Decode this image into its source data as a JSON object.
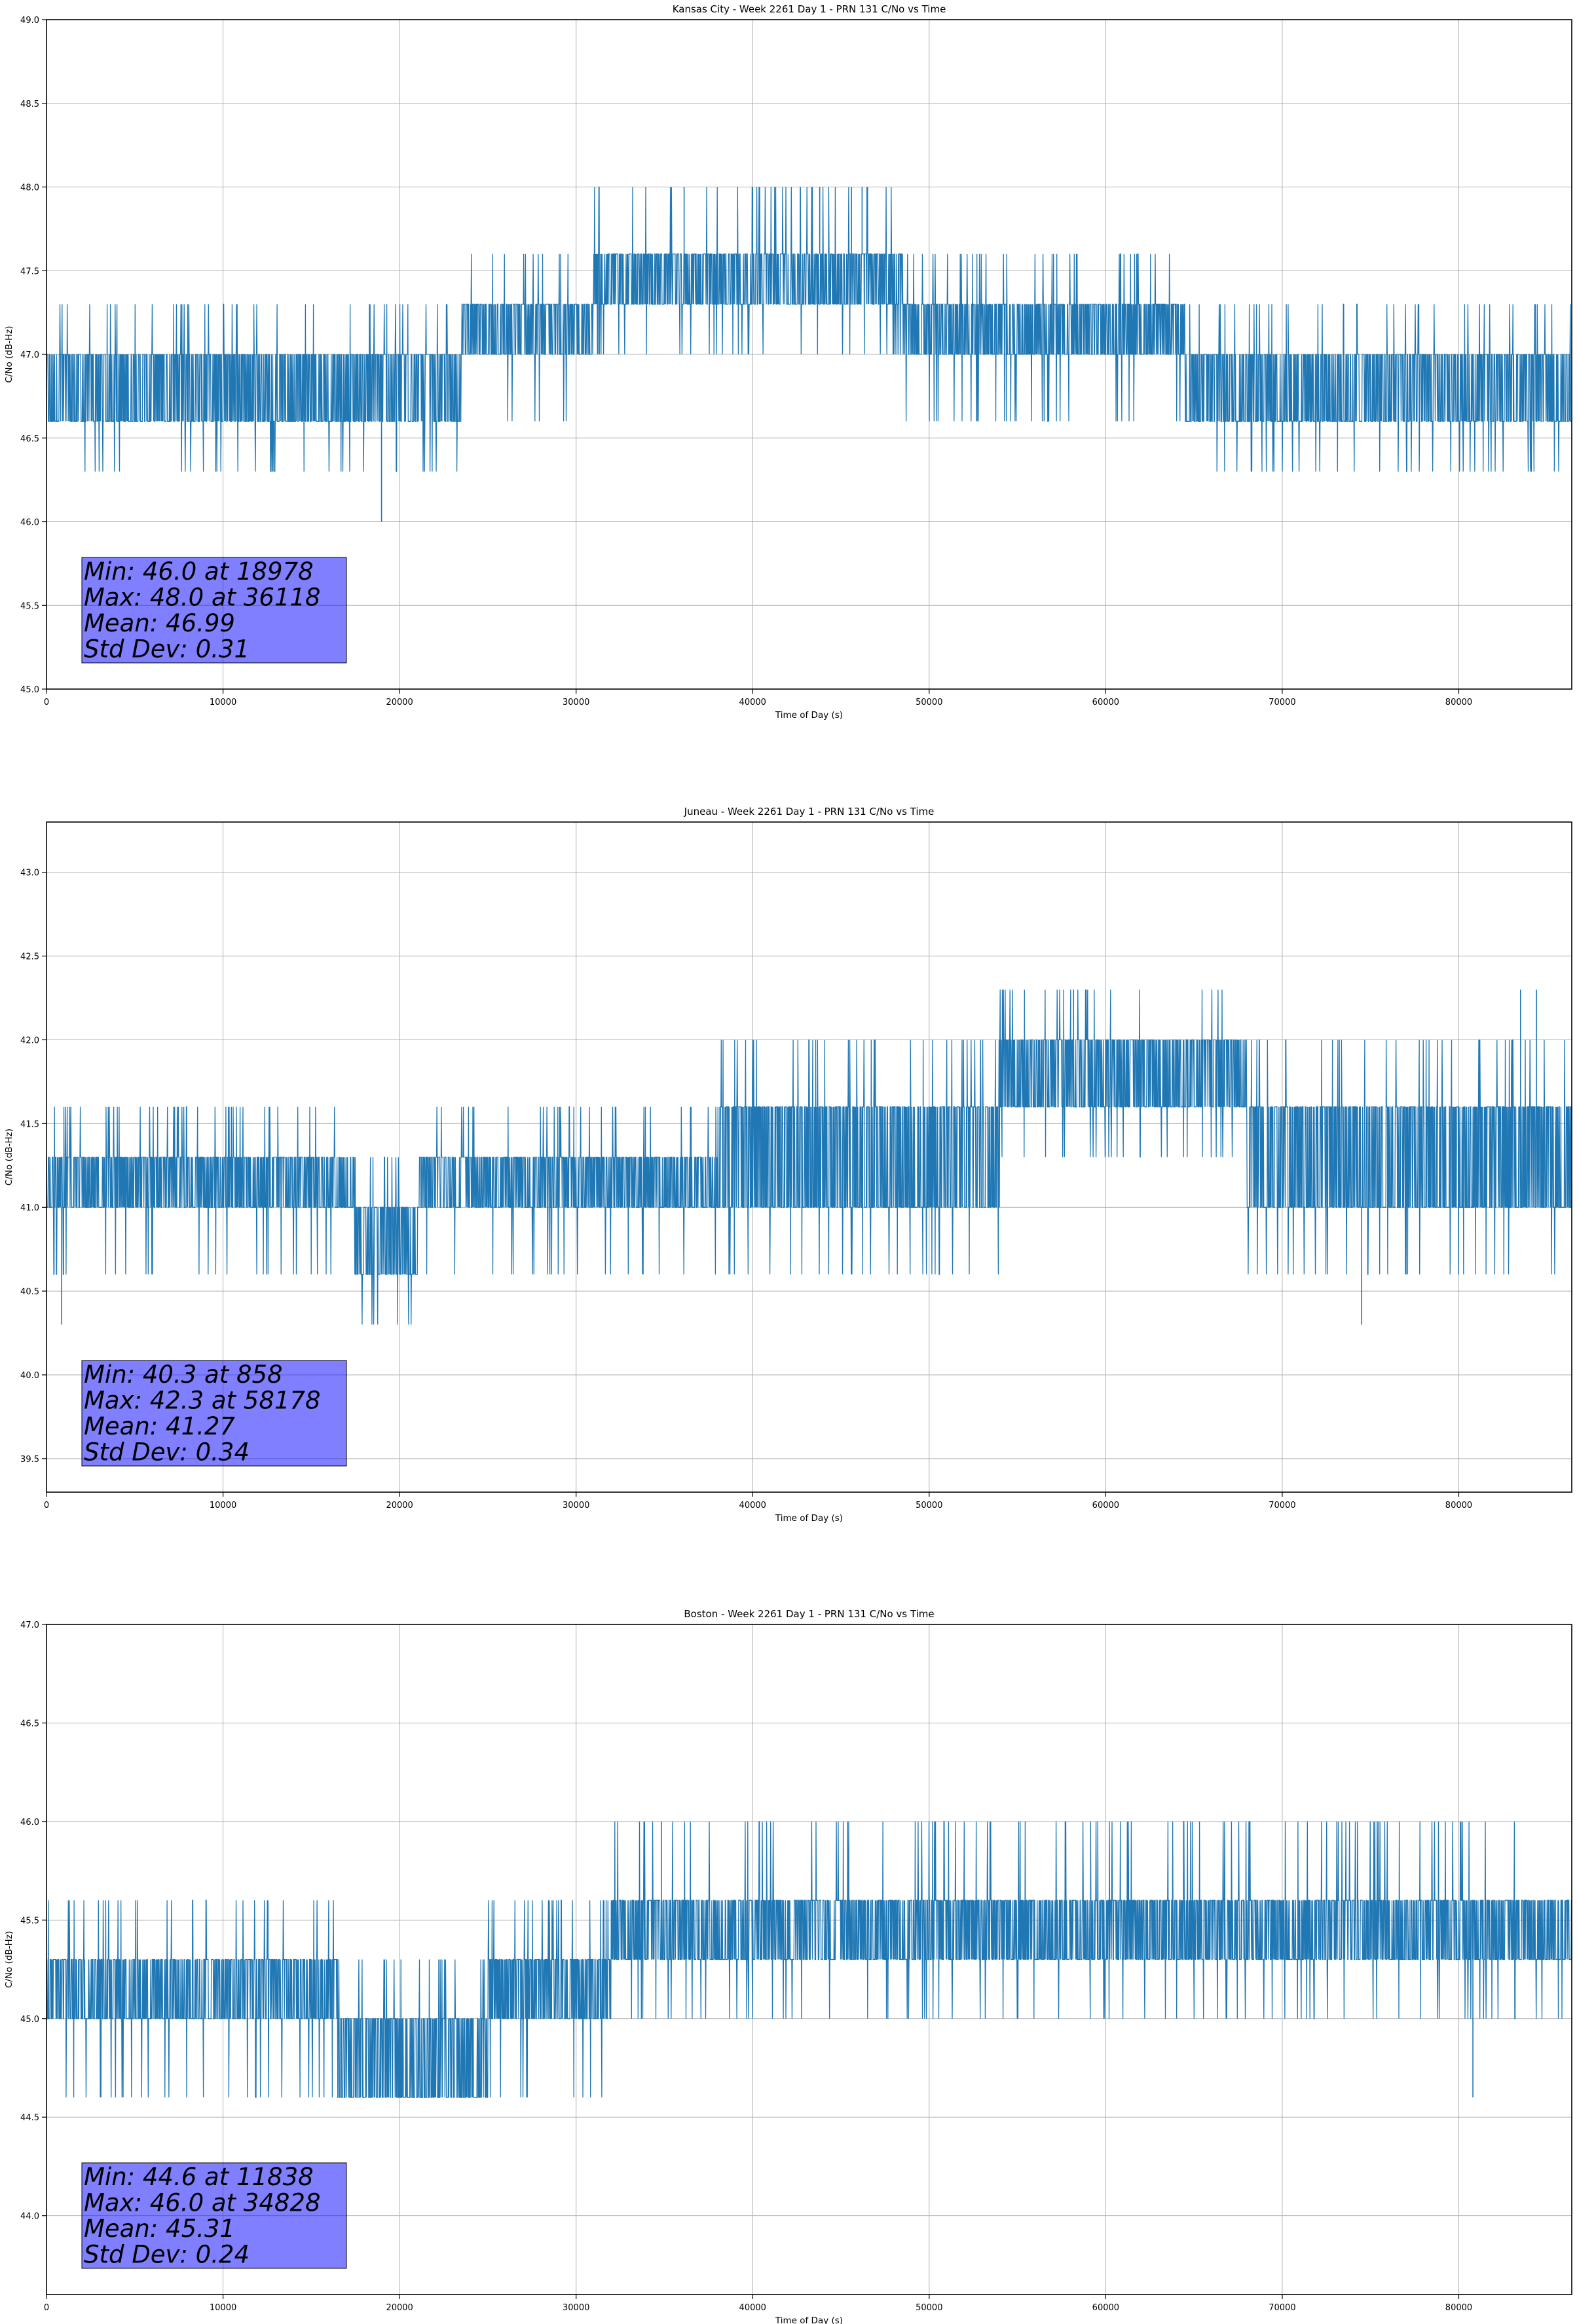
{
  "chart_data": [
    {
      "type": "line",
      "title": "Kansas City - Week 2261 Day 1 - PRN 131 C/No vs Time",
      "xlabel": "Time of Day (s)",
      "ylabel": "C/No (dB-Hz)",
      "xlim": [
        0,
        86400
      ],
      "ylim": [
        45.0,
        49.0
      ],
      "xticks": [
        0,
        10000,
        20000,
        30000,
        40000,
        50000,
        60000,
        70000,
        80000
      ],
      "yticks": [
        "45.0",
        "45.5",
        "46.0",
        "46.5",
        "47.0",
        "47.5",
        "48.0",
        "48.5",
        "49.0"
      ],
      "grid": true,
      "color": "#1f77b4",
      "stats": [
        "Min: 46.0 at 18978",
        "Max: 48.0 at 36118",
        "Mean: 46.99",
        "Std Dev: 0.31"
      ],
      "series": [
        {
          "segments": [
            {
              "from": 0,
              "to": 23500,
              "base": [
                46.6,
                47.0
              ],
              "up": [
                47.3
              ],
              "down": [
                46.3
              ]
            },
            {
              "from": 23500,
              "to": 31000,
              "base": [
                47.0,
                47.3
              ],
              "up": [
                47.6
              ],
              "down": [
                46.6
              ]
            },
            {
              "from": 31000,
              "to": 48500,
              "base": [
                47.3,
                47.6
              ],
              "up": [
                48.0
              ],
              "down": [
                47.0
              ]
            },
            {
              "from": 48500,
              "to": 64500,
              "base": [
                47.0,
                47.3
              ],
              "up": [
                47.6
              ],
              "down": [
                46.6
              ]
            },
            {
              "from": 64500,
              "to": 86400,
              "base": [
                46.6,
                47.0
              ],
              "up": [
                47.3
              ],
              "down": [
                46.3
              ]
            }
          ],
          "points": [
            [
              18978,
              46.0
            ],
            [
              36118,
              48.0
            ],
            [
              40000,
              48.0
            ],
            [
              42700,
              48.0
            ],
            [
              43800,
              48.0
            ],
            [
              45600,
              48.0
            ],
            [
              46200,
              48.0
            ]
          ]
        }
      ]
    },
    {
      "type": "line",
      "title": "Juneau - Week 2261 Day 1 - PRN 131 C/No vs Time",
      "xlabel": "Time of Day (s)",
      "ylabel": "C/No (dB-Hz)",
      "xlim": [
        0,
        86400
      ],
      "ylim": [
        39.3,
        43.3
      ],
      "xticks": [
        0,
        10000,
        20000,
        30000,
        40000,
        50000,
        60000,
        70000,
        80000
      ],
      "yticks": [
        "39.5",
        "40.0",
        "40.5",
        "41.0",
        "41.5",
        "42.0",
        "42.5",
        "43.0"
      ],
      "grid": true,
      "color": "#1f77b4",
      "stats": [
        "Min: 40.3 at 858",
        "Max: 42.3 at 58178",
        "Mean: 41.27",
        "Std Dev: 0.34"
      ],
      "series": [
        {
          "segments": [
            {
              "from": 0,
              "to": 17500,
              "base": [
                41.0,
                41.3
              ],
              "up": [
                41.6
              ],
              "down": [
                40.6
              ]
            },
            {
              "from": 17500,
              "to": 21000,
              "base": [
                40.6,
                41.0
              ],
              "up": [
                41.3
              ],
              "down": [
                40.3
              ]
            },
            {
              "from": 21000,
              "to": 38000,
              "base": [
                41.0,
                41.3
              ],
              "up": [
                41.6
              ],
              "down": [
                40.6
              ]
            },
            {
              "from": 38000,
              "to": 54000,
              "base": [
                41.0,
                41.6
              ],
              "up": [
                42.0
              ],
              "down": [
                40.6
              ]
            },
            {
              "from": 54000,
              "to": 68000,
              "base": [
                41.6,
                42.0
              ],
              "up": [
                42.3
              ],
              "down": [
                41.3
              ]
            },
            {
              "from": 68000,
              "to": 86400,
              "base": [
                41.0,
                41.6
              ],
              "up": [
                42.0
              ],
              "down": [
                40.6
              ]
            }
          ],
          "points": [
            [
              858,
              40.3
            ],
            [
              58178,
              42.3
            ],
            [
              74500,
              40.3
            ],
            [
              83500,
              42.3
            ],
            [
              84400,
              42.3
            ]
          ]
        }
      ]
    },
    {
      "type": "line",
      "title": "Boston - Week 2261 Day 1 - PRN 131 C/No vs Time",
      "xlabel": "Time of Day (s)",
      "ylabel": "C/No (dB-Hz)",
      "xlim": [
        0,
        86400
      ],
      "ylim": [
        43.6,
        47.0
      ],
      "xticks": [
        0,
        10000,
        20000,
        30000,
        40000,
        50000,
        60000,
        70000,
        80000
      ],
      "yticks": [
        "44.0",
        "44.5",
        "45.0",
        "45.5",
        "46.0",
        "46.5",
        "47.0"
      ],
      "grid": true,
      "color": "#1f77b4",
      "stats": [
        "Min: 44.6 at 11838",
        "Max: 46.0 at 34828",
        "Mean: 45.31",
        "Std Dev: 0.24"
      ],
      "series": [
        {
          "segments": [
            {
              "from": 0,
              "to": 16500,
              "base": [
                45.0,
                45.3
              ],
              "up": [
                45.6
              ],
              "down": [
                44.6
              ]
            },
            {
              "from": 16500,
              "to": 25000,
              "base": [
                44.6,
                45.0
              ],
              "up": [
                45.3
              ],
              "down": [
                44.6
              ]
            },
            {
              "from": 25000,
              "to": 32000,
              "base": [
                45.0,
                45.3
              ],
              "up": [
                45.6
              ],
              "down": [
                44.6
              ]
            },
            {
              "from": 32000,
              "to": 86400,
              "base": [
                45.3,
                45.6
              ],
              "up": [
                46.0
              ],
              "down": [
                45.0
              ]
            }
          ],
          "points": [
            [
              11838,
              44.6
            ],
            [
              34828,
              46.0
            ],
            [
              80800,
              44.6
            ]
          ]
        }
      ]
    }
  ]
}
